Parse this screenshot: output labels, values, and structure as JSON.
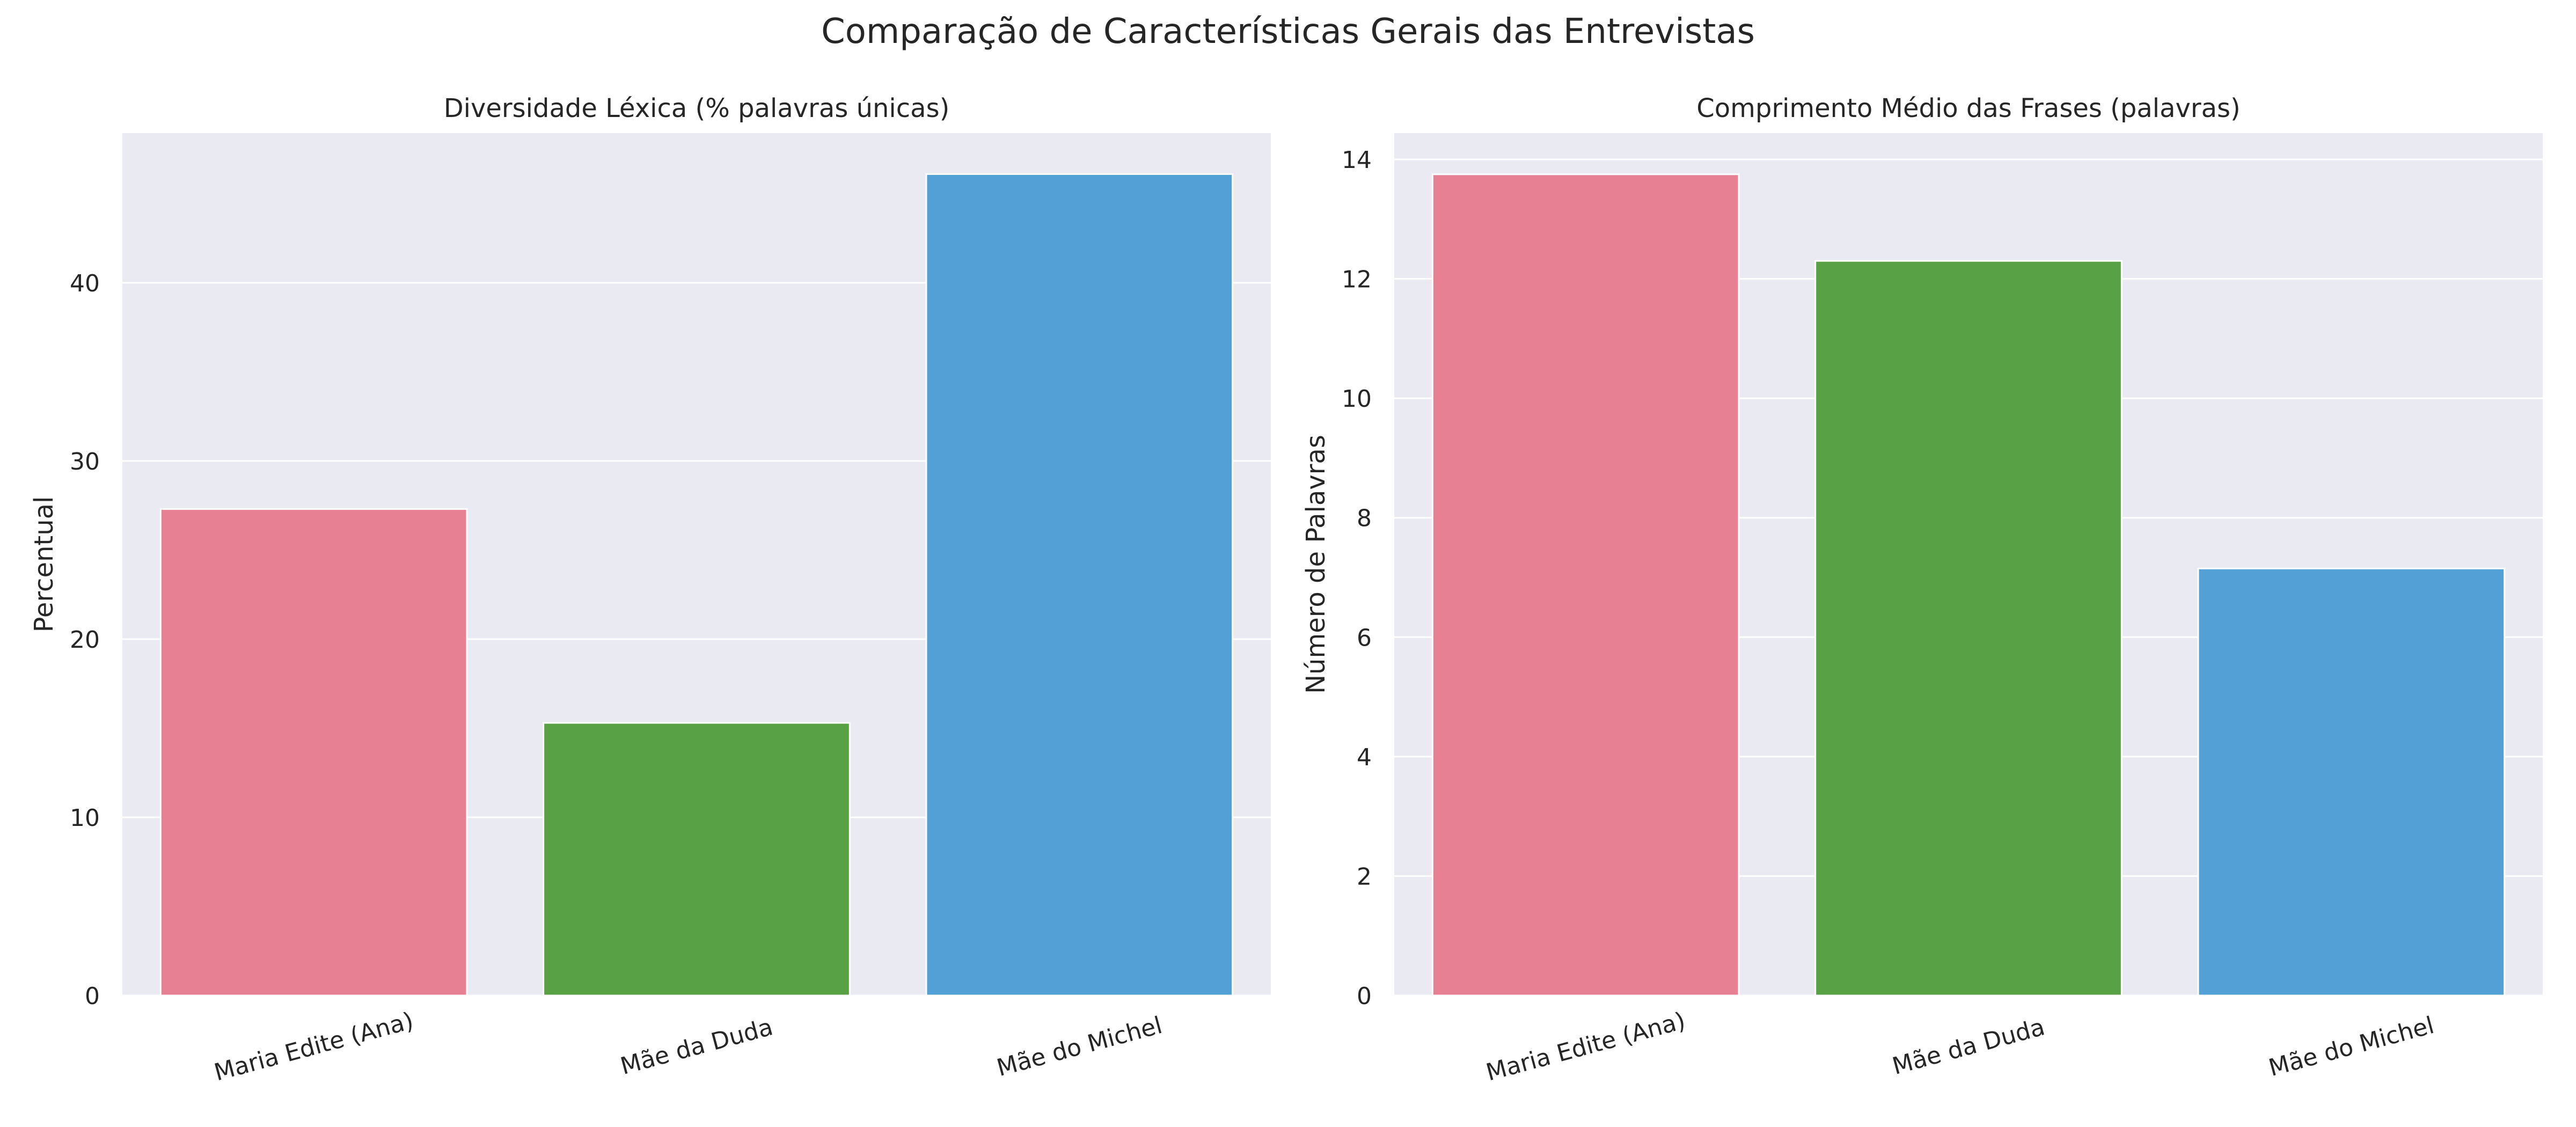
{
  "figure": {
    "title": "Comparação de Características Gerais das Entrevistas"
  },
  "chart_data": [
    {
      "type": "bar",
      "title": "Diversidade Léxica (% palavras únicas)",
      "xlabel": "",
      "ylabel": "Percentual",
      "categories": [
        "Maria Edite (Ana)",
        "Mãe da Duda",
        "Mãe do Michel"
      ],
      "values": [
        27.3,
        15.3,
        46.1
      ],
      "colors": [
        "#e88093",
        "#58a144",
        "#52a0d6"
      ],
      "ylim": [
        0,
        48.4
      ],
      "yticks": [
        0,
        10,
        20,
        30,
        40
      ],
      "grid": true
    },
    {
      "type": "bar",
      "title": "Comprimento Médio das Frases (palavras)",
      "xlabel": "",
      "ylabel": "Número de Palavras",
      "categories": [
        "Maria Edite (Ana)",
        "Mãe da Duda",
        "Mãe do Michel"
      ],
      "values": [
        13.75,
        12.3,
        7.15
      ],
      "colors": [
        "#e88093",
        "#58a144",
        "#52a0d6"
      ],
      "ylim": [
        0,
        14.44
      ],
      "yticks": [
        0,
        2,
        4,
        6,
        8,
        10,
        12,
        14
      ],
      "grid": true
    }
  ]
}
